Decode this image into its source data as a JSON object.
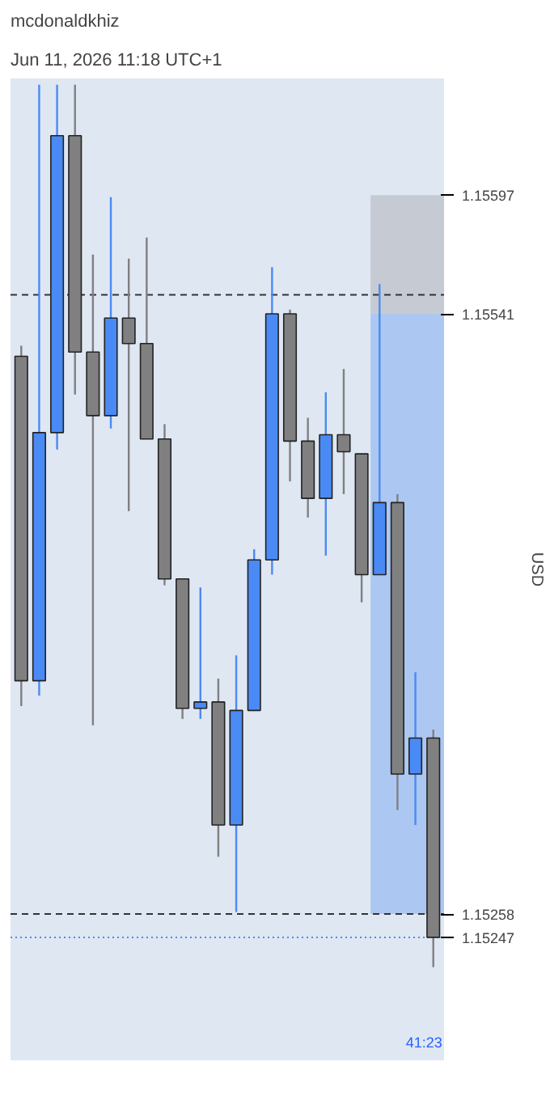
{
  "chart_data": {
    "type": "candlestick",
    "title": "mcdonaldkhiz",
    "subtitle": "Jun 11, 2026 11:18 UTC+1",
    "ylabel": "USD",
    "categories": [
      null,
      null,
      null,
      null,
      null,
      null,
      null,
      null,
      null,
      null,
      null,
      null,
      null,
      null,
      null,
      null,
      null,
      null,
      null,
      null,
      null,
      null,
      null,
      null
    ],
    "ohlc": [
      [
        1.15521,
        1.15526,
        1.15356,
        1.15368
      ],
      [
        1.15368,
        1.15649,
        1.15361,
        1.15485
      ],
      [
        1.15485,
        1.15649,
        1.15477,
        1.15625
      ],
      [
        1.15625,
        1.15649,
        1.15503,
        1.15523
      ],
      [
        1.15523,
        1.15569,
        1.15347,
        1.15493
      ],
      [
        1.15493,
        1.15596,
        1.15487,
        1.15539
      ],
      [
        1.15539,
        1.15567,
        1.15448,
        1.15527
      ],
      [
        1.15527,
        1.15577,
        1.15482,
        1.15482
      ],
      [
        1.15482,
        1.15489,
        1.15413,
        1.15416
      ],
      [
        1.15416,
        1.15416,
        1.1535,
        1.15355
      ],
      [
        1.15355,
        1.15412,
        1.1535,
        1.15358
      ],
      [
        1.15358,
        1.15369,
        1.15285,
        1.153
      ],
      [
        1.153,
        1.1538,
        1.15259,
        1.15354
      ],
      [
        1.15354,
        1.1543,
        1.15354,
        1.15425
      ],
      [
        1.15425,
        1.15563,
        1.15418,
        1.15541
      ],
      [
        1.15541,
        1.15543,
        1.15462,
        1.15481
      ],
      [
        1.15481,
        1.15492,
        1.15445,
        1.15454
      ],
      [
        1.15454,
        1.15504,
        1.15427,
        1.15484
      ],
      [
        1.15484,
        1.15515,
        1.15456,
        1.15476
      ],
      [
        1.15475,
        1.15475,
        1.15405,
        1.15418
      ],
      [
        1.15418,
        1.15555,
        1.15418,
        1.15452
      ],
      [
        1.15452,
        1.15456,
        1.15307,
        1.15324
      ],
      [
        1.15324,
        1.15372,
        1.153,
        1.15341
      ],
      [
        1.15341,
        1.15345,
        1.15233,
        1.15247
      ]
    ],
    "colors": [
      "#808080",
      "#4a8af4",
      "#4a8af4",
      "#808080",
      "#808080",
      "#4a8af4",
      "#808080",
      "#808080",
      "#808080",
      "#808080",
      "#4a8af4",
      "#808080",
      "#4a8af4",
      "#4a8af4",
      "#4a8af4",
      "#808080",
      "#808080",
      "#4a8af4",
      "#808080",
      "#808080",
      "#4a8af4",
      "#808080",
      "#4a8af4",
      "#808080"
    ],
    "ylim": [
      1.15189,
      1.15652
    ],
    "yticks": [
      {
        "value": 1.15597,
        "label": "1.15597"
      },
      {
        "value": 1.15541,
        "label": "1.15541"
      },
      {
        "value": 1.15258,
        "label": "1.15258"
      },
      {
        "value": 1.15247,
        "label": "1.15247"
      }
    ],
    "bands": [
      {
        "axis": "y",
        "from": 1.15541,
        "to": 1.15597,
        "color": "#a9a9ad"
      },
      {
        "axis": "y",
        "from": 1.15258,
        "to": 1.15541,
        "color": "#6f9ff0"
      }
    ],
    "ref_lines": [
      {
        "axis": "y",
        "value": 1.1555,
        "color": "#333333",
        "line_style": "dashed"
      },
      {
        "axis": "y",
        "value": 1.15258,
        "color": "#333333",
        "line_style": "dashed"
      },
      {
        "axis": "y",
        "value": 1.15247,
        "color": "#4a8af4",
        "line_style": "dotted"
      }
    ],
    "annotations": [
      "41:23"
    ],
    "grid": false
  }
}
